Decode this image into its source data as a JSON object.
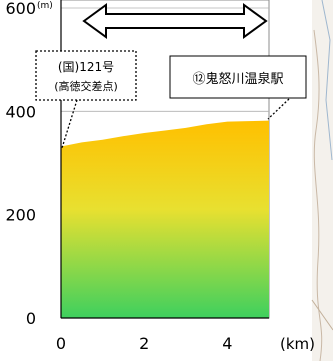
{
  "chart_data": {
    "type": "area",
    "y_unit": "(m)",
    "x_unit": "(km)",
    "xlim": [
      0,
      5
    ],
    "ylim": [
      0,
      600
    ],
    "x_ticks": [
      "0",
      "2",
      "4"
    ],
    "y_ticks": [
      "0",
      "200",
      "400",
      "600"
    ],
    "grid": "horizontal",
    "series": [
      {
        "x": [
          0,
          0.5,
          1,
          1.5,
          2,
          2.5,
          3,
          3.5,
          4,
          4.5,
          5
        ],
        "values": [
          332,
          340,
          345,
          352,
          358,
          363,
          368,
          375,
          380,
          381,
          382
        ]
      }
    ],
    "fill_top_color": "#ffc000",
    "fill_bottom_color": "#3ed05e"
  },
  "annotations": {
    "start_label_line1": "(国)121号",
    "start_label_line2": "(高徳交差点)",
    "end_label": "⑫鬼怒川温泉駅"
  },
  "arrow": {
    "icon": "double-headed-arrow"
  }
}
